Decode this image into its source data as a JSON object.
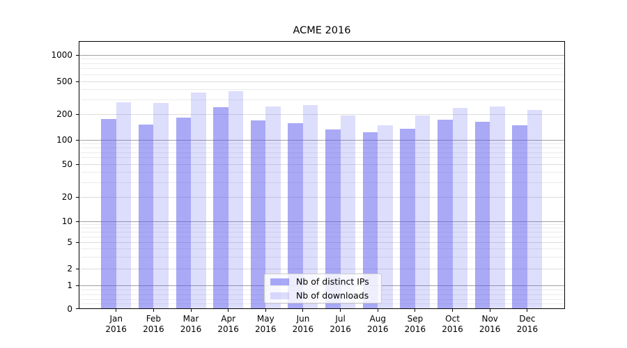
{
  "chart_data": {
    "type": "bar",
    "title": "ACME 2016",
    "categories": [
      "Jan",
      "Feb",
      "Mar",
      "Apr",
      "May",
      "Jun",
      "Jul",
      "Aug",
      "Sep",
      "Oct",
      "Nov",
      "Dec"
    ],
    "category_year": "2016",
    "series": [
      {
        "name": "Nb of distinct IPs",
        "color": "#5353ee",
        "alpha": 0.5,
        "values": [
          175,
          152,
          183,
          245,
          170,
          158,
          133,
          124,
          135,
          171,
          162,
          148
        ]
      },
      {
        "name": "Nb of downloads",
        "color": "#5353ee",
        "alpha": 0.2,
        "values": [
          277,
          273,
          369,
          380,
          250,
          258,
          192,
          148,
          191,
          237,
          246,
          226
        ]
      }
    ],
    "xlabel": "",
    "ylabel": "",
    "yscale": "symlog",
    "yticks": [
      0,
      1,
      2,
      5,
      10,
      20,
      50,
      100,
      200,
      500,
      1000
    ],
    "ylim": [
      0,
      1500
    ],
    "grid": "both",
    "legend_position": "lower center"
  },
  "colors": {
    "background": "#ffffff",
    "bar_base": "#5353ee",
    "grid_decade": "#a0a0a0",
    "grid_labeled": "#dcdcdc",
    "grid_minor": "#ebebeb",
    "axis": "#000000",
    "legend_border": "#cccccc",
    "legend_bg": "rgba(255,255,255,0.8)"
  }
}
